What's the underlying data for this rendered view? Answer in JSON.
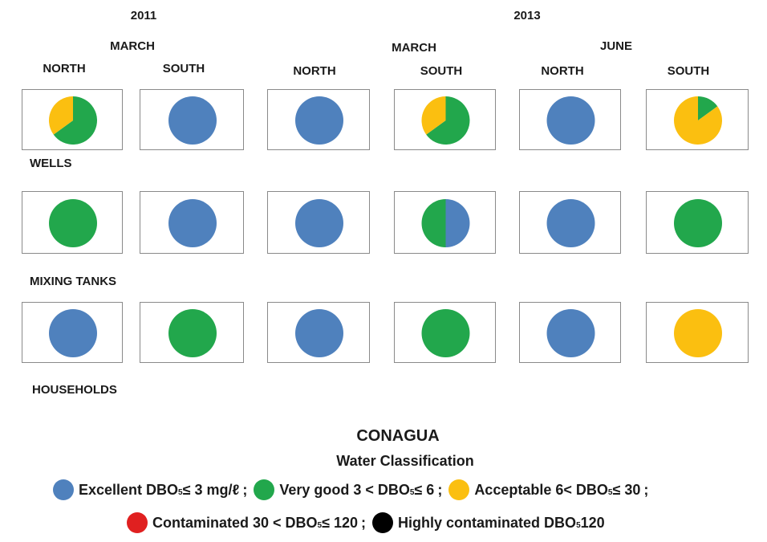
{
  "chart_data": {
    "type": "pie",
    "title": "CONAGUA",
    "subtitle": "Water Classification",
    "columns": [
      {
        "year": "2011",
        "month": "MARCH",
        "site": "NORTH"
      },
      {
        "year": "2011",
        "month": "MARCH",
        "site": "SOUTH"
      },
      {
        "year": "2013",
        "month": "MARCH",
        "site": "NORTH"
      },
      {
        "year": "2013",
        "month": "MARCH",
        "site": "SOUTH"
      },
      {
        "year": "2013",
        "month": "JUNE",
        "site": "NORTH"
      },
      {
        "year": "2013",
        "month": "JUNE",
        "site": "SOUTH"
      }
    ],
    "headers": {
      "year_2011": "2011",
      "year_2013": "2013",
      "month_2011_march": "MARCH",
      "month_2013_march": "MARCH",
      "month_2013_june": "JUNE",
      "cols": [
        "NORTH",
        "SOUTH",
        "NORTH",
        "SOUTH",
        "NORTH",
        "SOUTH"
      ]
    },
    "rows": [
      {
        "label": "WELLS",
        "pies": [
          [
            {
              "cls": "very_good",
              "value": 65
            },
            {
              "cls": "acceptable",
              "value": 35
            }
          ],
          [
            {
              "cls": "excellent",
              "value": 100
            }
          ],
          [
            {
              "cls": "excellent",
              "value": 100
            }
          ],
          [
            {
              "cls": "very_good",
              "value": 65
            },
            {
              "cls": "acceptable",
              "value": 35
            }
          ],
          [
            {
              "cls": "excellent",
              "value": 100
            }
          ],
          [
            {
              "cls": "very_good",
              "value": 15
            },
            {
              "cls": "acceptable",
              "value": 85
            }
          ]
        ]
      },
      {
        "label": "MIXING TANKS",
        "pies": [
          [
            {
              "cls": "very_good",
              "value": 100
            }
          ],
          [
            {
              "cls": "excellent",
              "value": 100
            }
          ],
          [
            {
              "cls": "excellent",
              "value": 100
            }
          ],
          [
            {
              "cls": "excellent",
              "value": 50
            },
            {
              "cls": "very_good",
              "value": 50
            }
          ],
          [
            {
              "cls": "excellent",
              "value": 100
            }
          ],
          [
            {
              "cls": "very_good",
              "value": 100
            }
          ]
        ]
      },
      {
        "label": "HOUSEHOLDS",
        "pies": [
          [
            {
              "cls": "excellent",
              "value": 100
            }
          ],
          [
            {
              "cls": "very_good",
              "value": 100
            }
          ],
          [
            {
              "cls": "excellent",
              "value": 100
            }
          ],
          [
            {
              "cls": "very_good",
              "value": 100
            }
          ],
          [
            {
              "cls": "excellent",
              "value": 100
            }
          ],
          [
            {
              "cls": "acceptable",
              "value": 100
            }
          ]
        ]
      }
    ],
    "legend": [
      {
        "cls": "excellent",
        "color": "#4f81bd",
        "label": "Excellent DBO",
        "sub": "5",
        "rest": " ≤ 3 mg/ℓ"
      },
      {
        "cls": "very_good",
        "color": "#22a74c",
        "label": "Very good 3 < DBO",
        "sub": "5",
        "rest": " ≤ 6"
      },
      {
        "cls": "acceptable",
        "color": "#fbbf10",
        "label": "Acceptable 6< DBO",
        "sub": "5",
        "rest": " ≤ 30"
      },
      {
        "cls": "contaminated",
        "color": "#e02020",
        "label": "Contaminated 30 < DBO",
        "sub": "5",
        "rest": " ≤ 120"
      },
      {
        "cls": "highly_contaminated",
        "color": "#000000",
        "label": "Highly contaminated DBO",
        "sub": "5",
        "rest": " 120"
      }
    ],
    "separator": ";"
  }
}
